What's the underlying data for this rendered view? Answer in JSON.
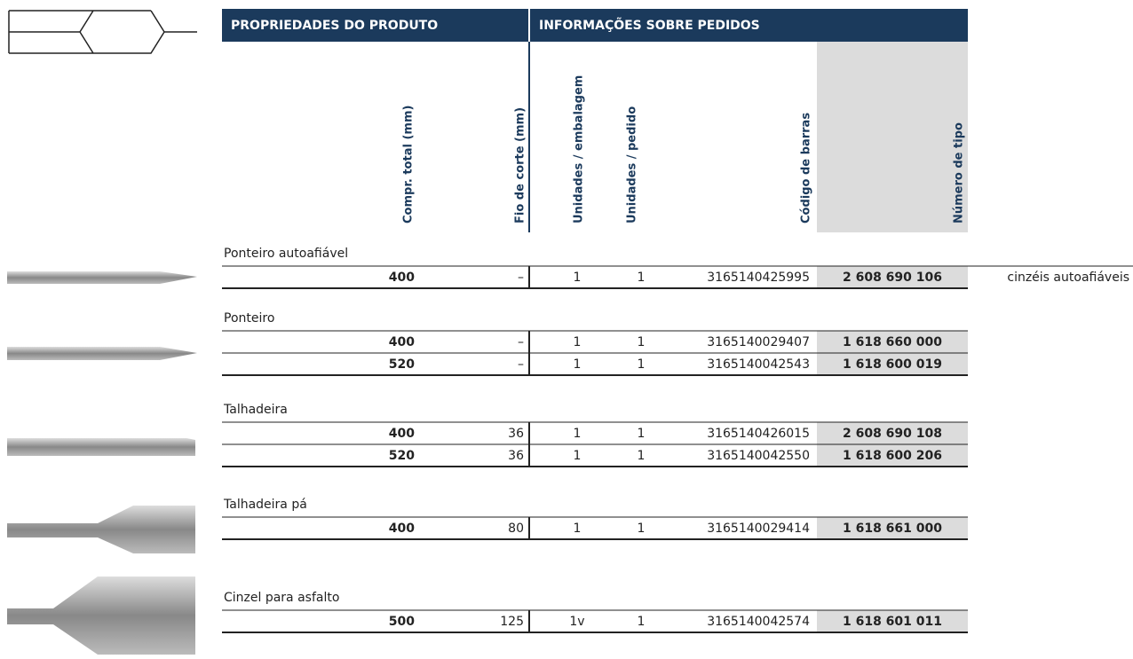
{
  "header": {
    "sections": [
      "PROPRIEDADES DO PRODUTO",
      "INFORMAÇÕES SOBRE PEDIDOS"
    ],
    "columns": [
      "Compr. total (mm)",
      "Fio de corte (mm)",
      "Unidades / embalagem",
      "Unidades / pedido",
      "Código de barras",
      "Número de tipo"
    ]
  },
  "groups": [
    {
      "label": "Ponteiro autoafiável",
      "rows": [
        {
          "cells": [
            "400",
            "–",
            "1",
            "1",
            "3165140425995",
            "2 608 690 106"
          ],
          "note": "cinzéis autoafiáveis"
        }
      ]
    },
    {
      "label": "Ponteiro",
      "rows": [
        {
          "cells": [
            "400",
            "–",
            "1",
            "1",
            "3165140029407",
            "1 618 660 000"
          ]
        },
        {
          "cells": [
            "520",
            "–",
            "1",
            "1",
            "3165140042543",
            "1 618 600 019"
          ]
        }
      ]
    },
    {
      "label": "Talhadeira",
      "rows": [
        {
          "cells": [
            "400",
            "36",
            "1",
            "1",
            "3165140426015",
            "2 608 690 108"
          ]
        },
        {
          "cells": [
            "520",
            "36",
            "1",
            "1",
            "3165140042550",
            "1 618 600 206"
          ]
        }
      ]
    },
    {
      "label": "Talhadeira pá",
      "rows": [
        {
          "cells": [
            "400",
            "80",
            "1",
            "1",
            "3165140029414",
            "1 618 661 000"
          ]
        }
      ]
    },
    {
      "label": "Cinzel para asfalto",
      "rows": [
        {
          "cells": [
            "500",
            "125",
            "1v",
            "1",
            "3165140042574",
            "1 618 601 011"
          ]
        }
      ]
    }
  ]
}
